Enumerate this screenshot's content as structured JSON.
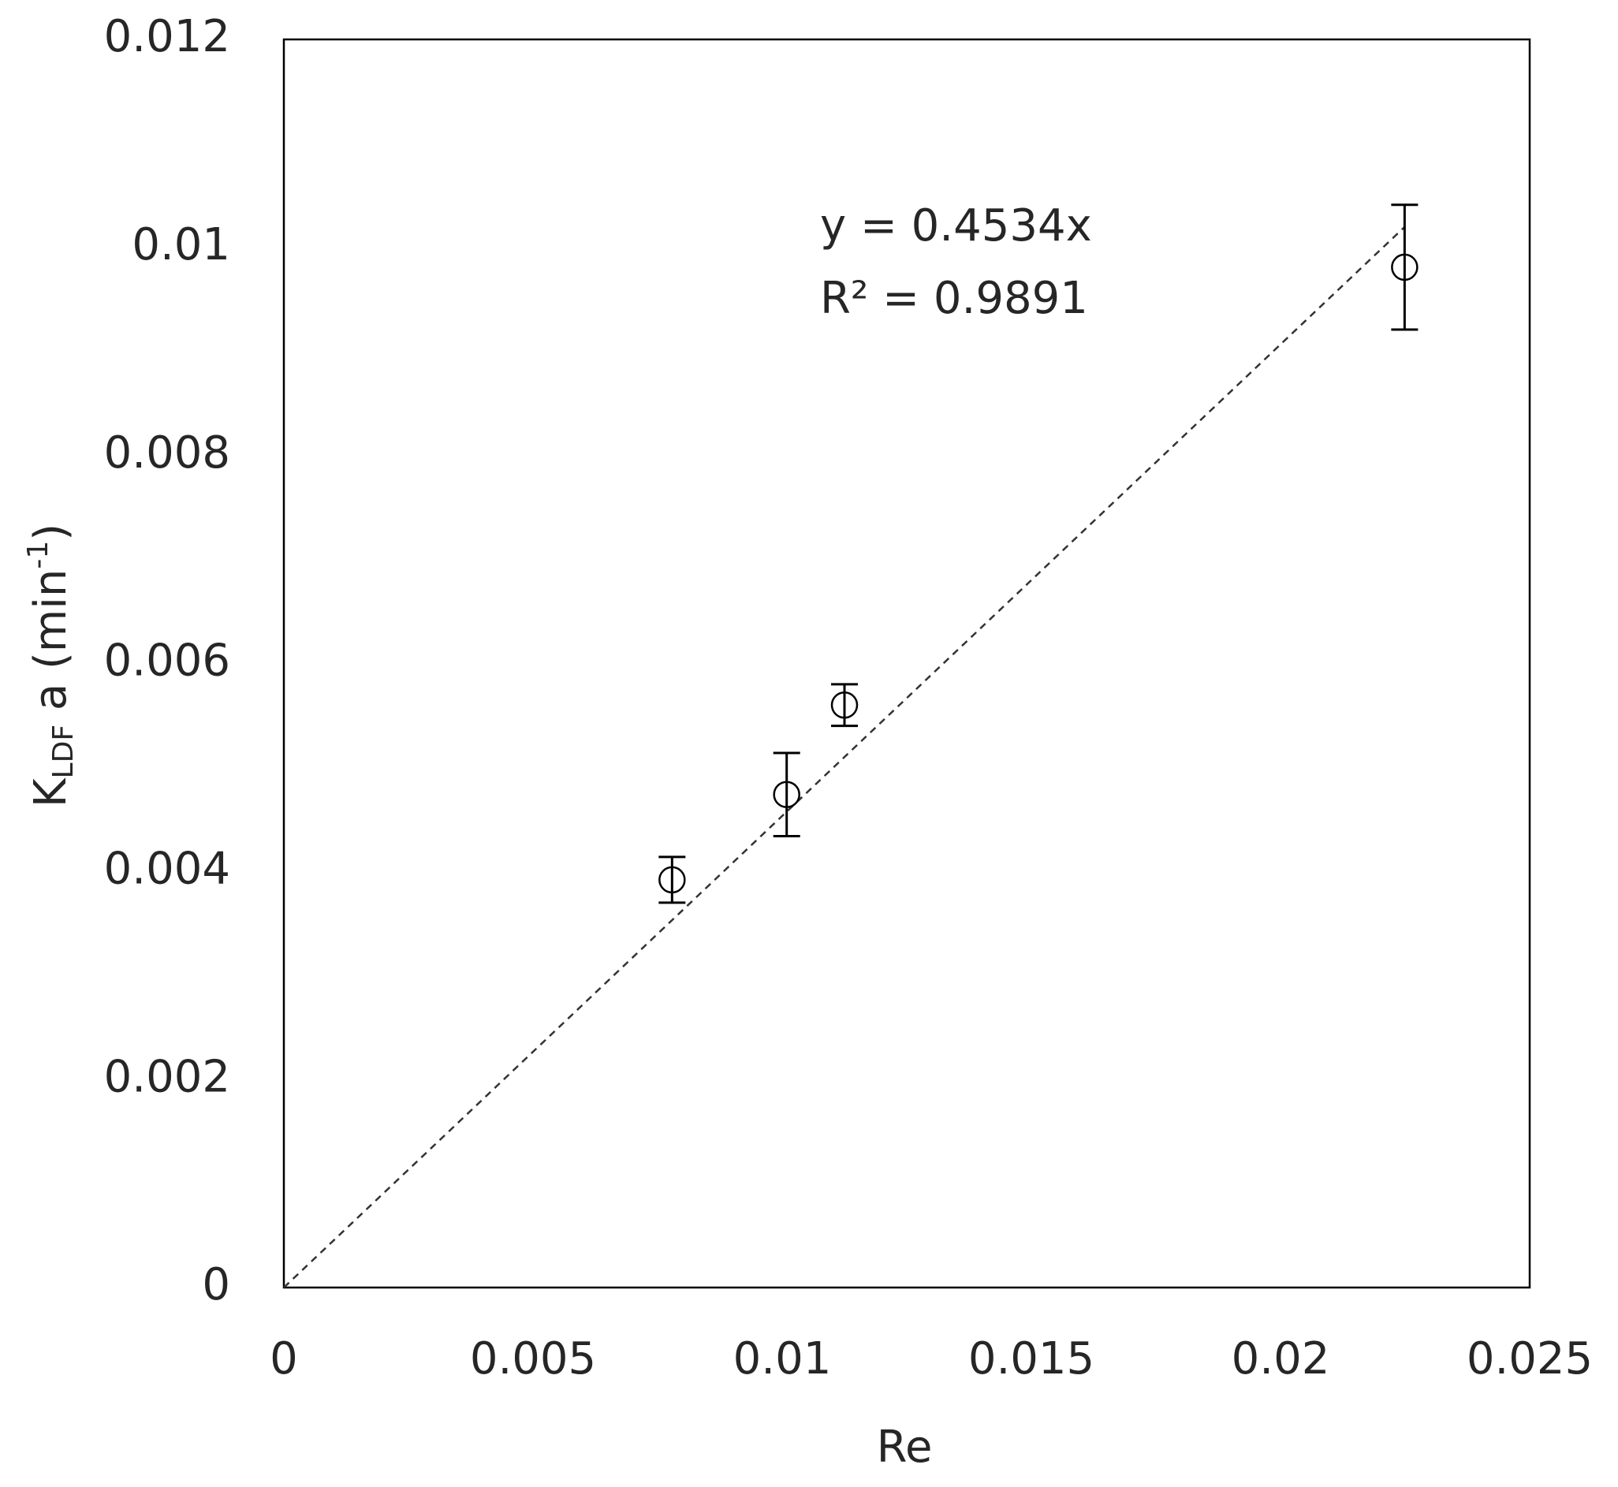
{
  "chart_data": {
    "type": "scatter",
    "x_label": "Re",
    "y_label": {
      "main": "K",
      "subscript": "LDF",
      "middle": " a (min",
      "superscript": "-1",
      "end": ")"
    },
    "series": [
      {
        "x": [
          0.00779,
          0.01009,
          0.01125,
          0.02249
        ],
        "values": [
          0.00392,
          0.00474,
          0.0056,
          0.00981
        ],
        "errors": [
          0.00022,
          0.0004,
          0.0002,
          0.0006
        ],
        "color": "#000000"
      }
    ],
    "trendline": {
      "slope": 0.4534,
      "equation": "y = 0.4534x",
      "r_squared": "R² = 0.9891"
    },
    "xlim": [
      0,
      0.025
    ],
    "xticks": [
      0,
      0.005,
      0.01,
      0.015,
      0.02,
      0.025
    ],
    "ylim": [
      0,
      0.012
    ],
    "yticks": [
      0,
      0.002,
      0.004,
      0.006,
      0.008,
      0.01,
      0.012
    ],
    "grid": false
  }
}
